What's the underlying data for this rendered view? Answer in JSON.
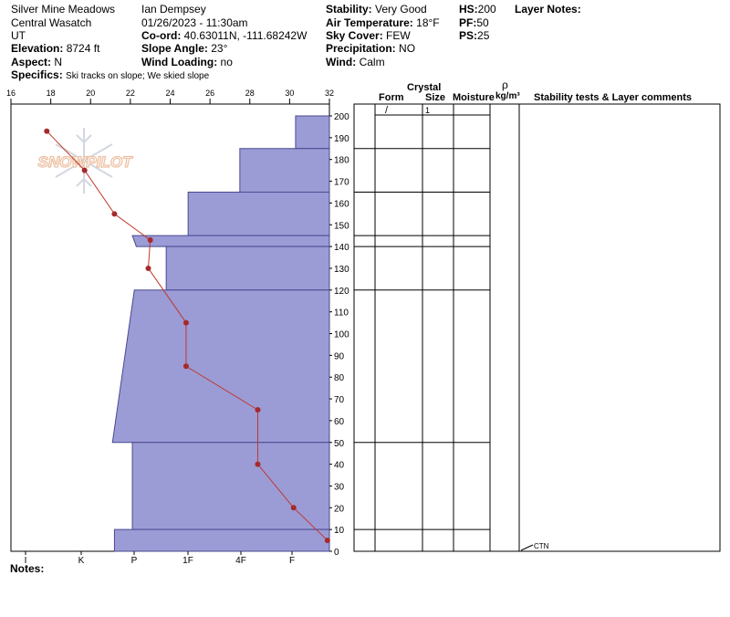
{
  "header": {
    "location": "Silver Mine Meadows",
    "range": "Central Wasatch",
    "state": "UT",
    "elevation_label": "Elevation:",
    "elevation": "8724 ft",
    "aspect_label": "Aspect:",
    "aspect": "N",
    "specifics_label": "Specifics:",
    "specifics": "Ski tracks on slope; We skied slope",
    "observer": "Ian Dempsey",
    "datetime": "01/26/2023 - 11:30am",
    "coord_label": "Co-ord:",
    "coord": "40.63011N, -111.68242W",
    "slope_label": "Slope Angle:",
    "slope": "23°",
    "wind_loading_label": "Wind Loading:",
    "wind_loading": "no",
    "stability_label": "Stability:",
    "stability": "Very Good",
    "air_temp_label": "Air Temperature:",
    "air_temp": "18°F",
    "sky_label": "Sky Cover:",
    "sky": "FEW",
    "precip_label": "Precipitation:",
    "precip": "NO",
    "wind_label": "Wind:",
    "wind": "Calm",
    "hs_label": "HS:",
    "hs": "200",
    "pf_label": "PF:",
    "pf": "50",
    "ps_label": "PS:",
    "ps": "25",
    "layer_notes_label": "Layer Notes:",
    "notes_label": "Notes:"
  },
  "logo_text": "SNOWPILOT",
  "colors": {
    "layer_fill": "#9b9bd6",
    "layer_stroke": "#4a4a90",
    "temp_line": "#c0392b",
    "temp_point": "#a52a2a",
    "logo": "#e8a070"
  },
  "chart_data": {
    "type": "snow-profile",
    "temperature_axis": {
      "ticks": [
        "16",
        "18",
        "20",
        "22",
        "24",
        "26",
        "28",
        "30",
        "32"
      ],
      "range": [
        16,
        32
      ]
    },
    "height_axis": {
      "ticks": [
        "200",
        "190",
        "180",
        "170",
        "160",
        "150",
        "140",
        "130",
        "120",
        "110",
        "100",
        "90",
        "80",
        "70",
        "60",
        "50",
        "40",
        "30",
        "20",
        "10",
        "0"
      ],
      "range": [
        0,
        200
      ]
    },
    "hardness_axis": {
      "labels": [
        "I",
        "K",
        "P",
        "1F",
        "4F",
        "F"
      ]
    },
    "temperature_profile": [
      {
        "height": 193,
        "temp": 17.8
      },
      {
        "height": 175,
        "temp": 19.7
      },
      {
        "height": 155,
        "temp": 21.2
      },
      {
        "height": 143,
        "temp": 23.0
      },
      {
        "height": 130,
        "temp": 22.9
      },
      {
        "height": 105,
        "temp": 24.8
      },
      {
        "height": 85,
        "temp": 24.8
      },
      {
        "height": 65,
        "temp": 28.4
      },
      {
        "height": 40,
        "temp": 28.4
      },
      {
        "height": 20,
        "temp": 30.2
      },
      {
        "height": 5,
        "temp": 31.9
      }
    ],
    "layers": [
      {
        "top": 200,
        "bottom": 185,
        "hardness_top": 30.3,
        "hardness_bottom": 30.3
      },
      {
        "top": 185,
        "bottom": 165,
        "hardness_top": 27.5,
        "hardness_bottom": 27.5
      },
      {
        "top": 165,
        "bottom": 145,
        "hardness_top": 24.9,
        "hardness_bottom": 24.9
      },
      {
        "top": 145,
        "bottom": 140,
        "hardness_top": 22.1,
        "hardness_bottom": 22.3
      },
      {
        "top": 140,
        "bottom": 120,
        "hardness_top": 23.8,
        "hardness_bottom": 23.8
      },
      {
        "top": 120,
        "bottom": 50,
        "hardness_top": 22.2,
        "hardness_bottom": 21.1
      },
      {
        "top": 50,
        "bottom": 10,
        "hardness_top": 22.1,
        "hardness_bottom": 22.1
      },
      {
        "top": 10,
        "bottom": 0,
        "hardness_top": 21.2,
        "hardness_bottom": 21.2
      }
    ],
    "layer_boundaries": [
      185,
      165,
      145,
      140,
      120,
      50,
      10
    ],
    "layer_table": {
      "headers": {
        "form": "Form",
        "crystal": "Crystal",
        "size": "Size",
        "moisture": "Moisture",
        "rho": "ρ",
        "rho_unit": "kg/m³",
        "stability": "Stability tests & Layer comments"
      },
      "first_row": {
        "form": "/",
        "size": "1"
      }
    },
    "stability_tests": [
      {
        "label": "CTN",
        "height": 0
      }
    ]
  }
}
